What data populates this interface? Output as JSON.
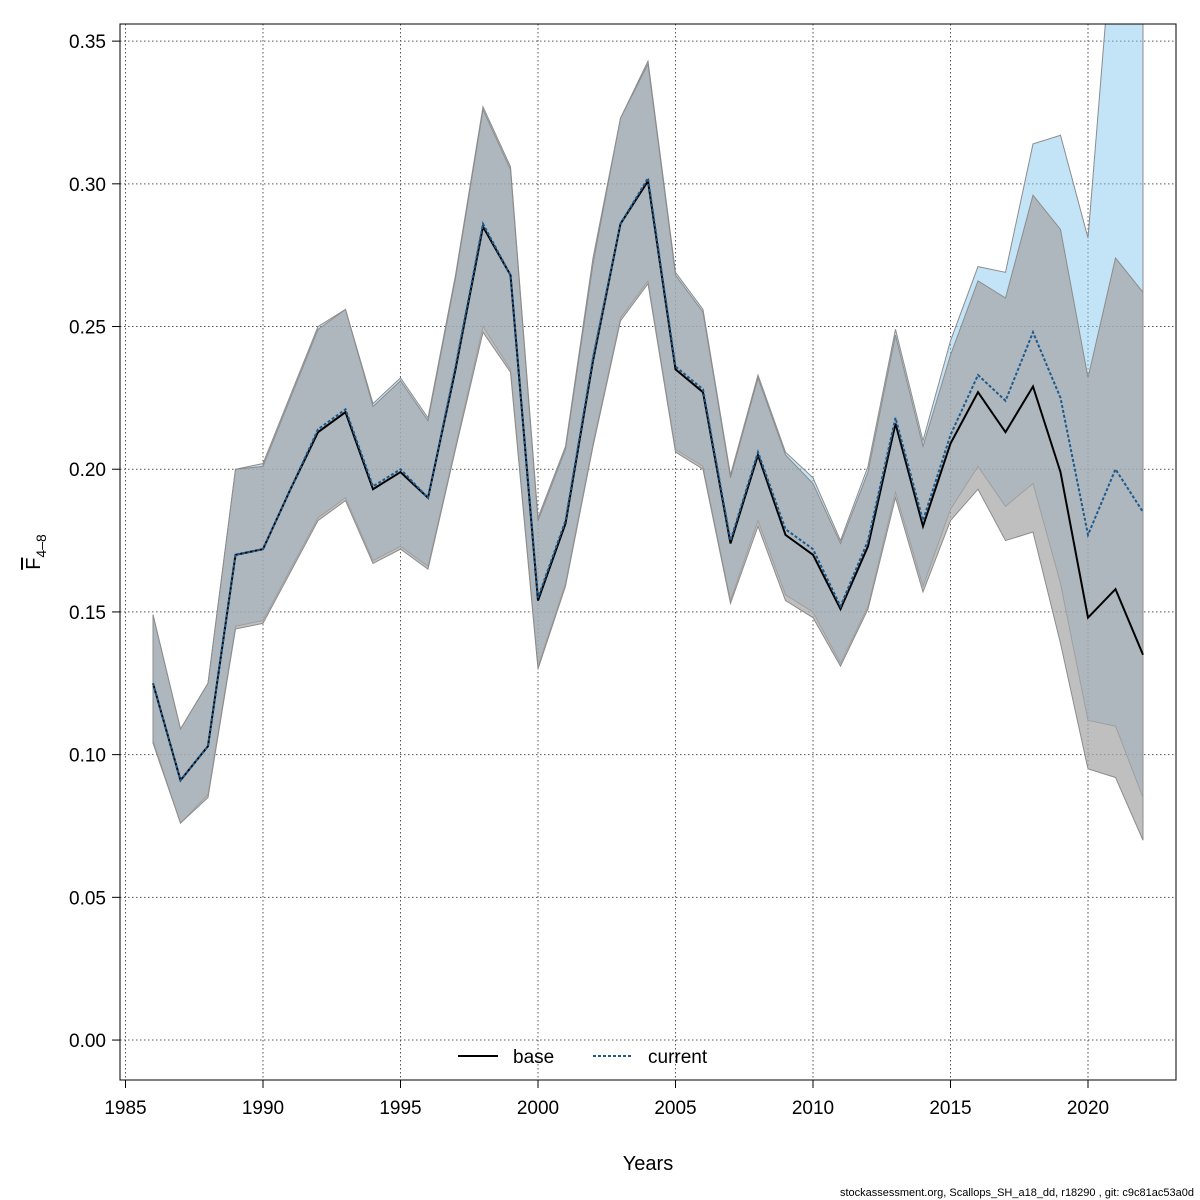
{
  "chart_data": {
    "type": "line",
    "xlabel": "Years",
    "ylabel_main": "F",
    "ylabel_sub": "4–8",
    "xlim": [
      1984.8,
      2023.2
    ],
    "ylim": [
      -0.014,
      0.356
    ],
    "xticks": [
      1985,
      1990,
      1995,
      2000,
      2005,
      2010,
      2015,
      2020
    ],
    "yticks": [
      0.0,
      0.05,
      0.1,
      0.15,
      0.2,
      0.25,
      0.3,
      0.35
    ],
    "ytick_labels": [
      "0.00",
      "0.05",
      "0.10",
      "0.15",
      "0.20",
      "0.25",
      "0.30",
      "0.35"
    ],
    "grid": true,
    "legend_position": "bottom-center",
    "x": [
      1986,
      1987,
      1988,
      1989,
      1990,
      1991,
      1992,
      1993,
      1994,
      1995,
      1996,
      1997,
      1998,
      1999,
      2000,
      2001,
      2002,
      2003,
      2004,
      2005,
      2006,
      2007,
      2008,
      2009,
      2010,
      2011,
      2012,
      2013,
      2014,
      2015,
      2016,
      2017,
      2018,
      2019,
      2020,
      2021,
      2022
    ],
    "series": [
      {
        "name": "base",
        "color": "#000000",
        "line_style": "solid",
        "band_color": "#a6a6a6",
        "values": [
          0.125,
          0.091,
          0.103,
          0.17,
          0.172,
          0.193,
          0.213,
          0.22,
          0.193,
          0.199,
          0.19,
          0.235,
          0.285,
          0.268,
          0.154,
          0.181,
          0.238,
          0.286,
          0.301,
          0.235,
          0.227,
          0.174,
          0.205,
          0.177,
          0.17,
          0.151,
          0.173,
          0.216,
          0.18,
          0.209,
          0.227,
          0.213,
          0.229,
          0.199,
          0.148,
          0.158,
          0.135
        ],
        "lower": [
          0.104,
          0.076,
          0.085,
          0.144,
          0.146,
          0.164,
          0.182,
          0.189,
          0.167,
          0.172,
          0.165,
          0.207,
          0.248,
          0.234,
          0.13,
          0.159,
          0.208,
          0.252,
          0.265,
          0.206,
          0.2,
          0.153,
          0.18,
          0.154,
          0.148,
          0.131,
          0.151,
          0.19,
          0.157,
          0.182,
          0.193,
          0.175,
          0.178,
          0.139,
          0.095,
          0.092,
          0.07
        ],
        "upper": [
          0.149,
          0.109,
          0.125,
          0.2,
          0.201,
          0.225,
          0.249,
          0.256,
          0.222,
          0.231,
          0.217,
          0.267,
          0.326,
          0.305,
          0.182,
          0.207,
          0.272,
          0.323,
          0.342,
          0.268,
          0.255,
          0.197,
          0.232,
          0.205,
          0.195,
          0.174,
          0.199,
          0.247,
          0.208,
          0.24,
          0.266,
          0.26,
          0.296,
          0.284,
          0.232,
          0.274,
          0.262
        ]
      },
      {
        "name": "current",
        "color": "#1f5a8c",
        "line_style": "dashed",
        "band_color": "#87c8ee",
        "values": [
          0.125,
          0.091,
          0.103,
          0.17,
          0.172,
          0.193,
          0.214,
          0.221,
          0.194,
          0.2,
          0.19,
          0.236,
          0.286,
          0.268,
          0.155,
          0.182,
          0.239,
          0.286,
          0.302,
          0.236,
          0.228,
          0.175,
          0.206,
          0.179,
          0.172,
          0.152,
          0.175,
          0.218,
          0.182,
          0.212,
          0.233,
          0.224,
          0.248,
          0.225,
          0.177,
          0.2,
          0.185
        ],
        "lower": [
          0.105,
          0.076,
          0.086,
          0.145,
          0.147,
          0.165,
          0.183,
          0.19,
          0.168,
          0.173,
          0.166,
          0.208,
          0.25,
          0.235,
          0.131,
          0.16,
          0.209,
          0.253,
          0.266,
          0.207,
          0.201,
          0.154,
          0.182,
          0.156,
          0.15,
          0.132,
          0.152,
          0.192,
          0.159,
          0.186,
          0.201,
          0.187,
          0.195,
          0.16,
          0.112,
          0.11,
          0.085
        ],
        "upper": [
          0.149,
          0.109,
          0.125,
          0.2,
          0.202,
          0.226,
          0.25,
          0.256,
          0.223,
          0.232,
          0.218,
          0.268,
          0.327,
          0.306,
          0.183,
          0.208,
          0.274,
          0.323,
          0.343,
          0.269,
          0.256,
          0.198,
          0.233,
          0.206,
          0.197,
          0.175,
          0.201,
          0.249,
          0.21,
          0.245,
          0.271,
          0.269,
          0.314,
          0.317,
          0.281,
          0.4,
          0.4
        ]
      }
    ]
  },
  "footer": "stockassessment.org, Scallops_SH_a18_dd, r18290 , git: c9c81ac53a0d"
}
